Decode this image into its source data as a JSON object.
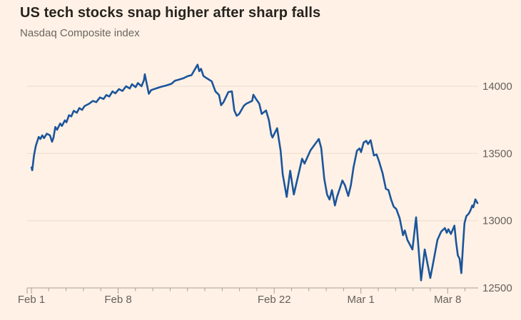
{
  "header": {
    "title": "US tech stocks snap higher after sharp falls",
    "subtitle": "Nasdaq Composite index"
  },
  "colors": {
    "background": "#FFF1E5",
    "line": "#1B559B",
    "gridline": "#EADDCF",
    "axis": "#A9A093",
    "tick_label": "#66605B",
    "title_text": "#26231F",
    "subtitle_text": "#6B655F"
  },
  "chart_data": {
    "type": "line",
    "title": "US tech stocks snap higher after sharp falls",
    "ylabel": "Nasdaq Composite index",
    "legend_position": "none",
    "grid": "horizontal-only",
    "x_unit": "trading sessions from Feb 1 (intraday)",
    "t_max": 26,
    "ylim": [
      12500,
      14280
    ],
    "y_ticks": [
      14000,
      13500,
      13000,
      12500
    ],
    "x_tick_labels": [
      {
        "t": 0,
        "label": "Feb 1"
      },
      {
        "t": 5,
        "label": "Feb 8"
      },
      {
        "t": 14,
        "label": "Feb 22"
      },
      {
        "t": 19,
        "label": "Mar 1"
      },
      {
        "t": 24,
        "label": "Mar 8"
      }
    ],
    "series": [
      {
        "name": "Nasdaq Composite index",
        "points": [
          [
            0.01,
            13396
          ],
          [
            0.05,
            13375
          ],
          [
            0.15,
            13485
          ],
          [
            0.25,
            13555
          ],
          [
            0.42,
            13623
          ],
          [
            0.52,
            13608
          ],
          [
            0.63,
            13635
          ],
          [
            0.73,
            13614
          ],
          [
            0.89,
            13647
          ],
          [
            1.07,
            13635
          ],
          [
            1.19,
            13587
          ],
          [
            1.27,
            13617
          ],
          [
            1.38,
            13697
          ],
          [
            1.48,
            13676
          ],
          [
            1.66,
            13723
          ],
          [
            1.76,
            13705
          ],
          [
            1.93,
            13746
          ],
          [
            2.02,
            13732
          ],
          [
            2.17,
            13785
          ],
          [
            2.3,
            13776
          ],
          [
            2.44,
            13817
          ],
          [
            2.62,
            13803
          ],
          [
            2.76,
            13838
          ],
          [
            2.92,
            13824
          ],
          [
            3.06,
            13852
          ],
          [
            3.33,
            13870
          ],
          [
            3.54,
            13891
          ],
          [
            3.74,
            13882
          ],
          [
            3.95,
            13917
          ],
          [
            4.16,
            13905
          ],
          [
            4.32,
            13935
          ],
          [
            4.49,
            13923
          ],
          [
            4.68,
            13962
          ],
          [
            4.84,
            13947
          ],
          [
            5.05,
            13979
          ],
          [
            5.25,
            13965
          ],
          [
            5.46,
            14000
          ],
          [
            5.67,
            13983
          ],
          [
            5.8,
            14015
          ],
          [
            6.01,
            13993
          ],
          [
            6.14,
            14024
          ],
          [
            6.35,
            14000
          ],
          [
            6.49,
            14046
          ],
          [
            6.54,
            14089
          ],
          [
            6.77,
            13944
          ],
          [
            6.9,
            13971
          ],
          [
            7.17,
            13983
          ],
          [
            7.48,
            13996
          ],
          [
            7.75,
            14005
          ],
          [
            8.07,
            14018
          ],
          [
            8.28,
            14041
          ],
          [
            8.5,
            14049
          ],
          [
            8.75,
            14059
          ],
          [
            9.03,
            14076
          ],
          [
            9.23,
            14082
          ],
          [
            9.58,
            14160
          ],
          [
            9.68,
            14112
          ],
          [
            9.78,
            14130
          ],
          [
            9.92,
            14076
          ],
          [
            10.12,
            14059
          ],
          [
            10.4,
            14036
          ],
          [
            10.61,
            13962
          ],
          [
            10.82,
            13935
          ],
          [
            10.94,
            13859
          ],
          [
            11.08,
            13882
          ],
          [
            11.36,
            13957
          ],
          [
            11.56,
            13962
          ],
          [
            11.7,
            13820
          ],
          [
            11.84,
            13780
          ],
          [
            11.98,
            13794
          ],
          [
            12.25,
            13855
          ],
          [
            12.39,
            13870
          ],
          [
            12.73,
            13891
          ],
          [
            12.8,
            13937
          ],
          [
            12.98,
            13900
          ],
          [
            13.14,
            13870
          ],
          [
            13.28,
            13794
          ],
          [
            13.53,
            13820
          ],
          [
            13.69,
            13749
          ],
          [
            13.83,
            13640
          ],
          [
            13.9,
            13619
          ],
          [
            14.17,
            13688
          ],
          [
            14.37,
            13520
          ],
          [
            14.49,
            13346
          ],
          [
            14.72,
            13177
          ],
          [
            14.92,
            13372
          ],
          [
            15.13,
            13195
          ],
          [
            15.61,
            13461
          ],
          [
            15.75,
            13425
          ],
          [
            16.09,
            13523
          ],
          [
            16.3,
            13560
          ],
          [
            16.57,
            13608
          ],
          [
            16.71,
            13540
          ],
          [
            16.89,
            13310
          ],
          [
            17.05,
            13195
          ],
          [
            17.19,
            13158
          ],
          [
            17.33,
            13228
          ],
          [
            17.5,
            13113
          ],
          [
            17.63,
            13180
          ],
          [
            17.78,
            13239
          ],
          [
            17.93,
            13299
          ],
          [
            18.08,
            13264
          ],
          [
            18.27,
            13184
          ],
          [
            18.42,
            13264
          ],
          [
            18.57,
            13396
          ],
          [
            18.77,
            13520
          ],
          [
            18.92,
            13538
          ],
          [
            19.01,
            13510
          ],
          [
            19.16,
            13582
          ],
          [
            19.31,
            13594
          ],
          [
            19.41,
            13570
          ],
          [
            19.56,
            13599
          ],
          [
            19.75,
            13485
          ],
          [
            19.9,
            13493
          ],
          [
            20.05,
            13440
          ],
          [
            20.25,
            13352
          ],
          [
            20.44,
            13237
          ],
          [
            20.59,
            13228
          ],
          [
            20.74,
            13158
          ],
          [
            20.89,
            13105
          ],
          [
            21.04,
            13087
          ],
          [
            21.24,
            13016
          ],
          [
            21.43,
            12892
          ],
          [
            21.53,
            12928
          ],
          [
            21.68,
            12857
          ],
          [
            21.97,
            12786
          ],
          [
            22.18,
            13025
          ],
          [
            22.47,
            12556
          ],
          [
            22.68,
            12786
          ],
          [
            23.0,
            12574
          ],
          [
            23.21,
            12716
          ],
          [
            23.41,
            12857
          ],
          [
            23.63,
            12919
          ],
          [
            23.84,
            12945
          ],
          [
            23.95,
            12910
          ],
          [
            24.04,
            12937
          ],
          [
            24.19,
            12901
          ],
          [
            24.39,
            12963
          ],
          [
            24.49,
            12839
          ],
          [
            24.59,
            12742
          ],
          [
            24.69,
            12716
          ],
          [
            24.79,
            12610
          ],
          [
            24.89,
            12821
          ],
          [
            24.97,
            12981
          ],
          [
            25.08,
            13034
          ],
          [
            25.21,
            13051
          ],
          [
            25.32,
            13078
          ],
          [
            25.42,
            13113
          ],
          [
            25.48,
            13100
          ],
          [
            25.6,
            13159
          ],
          [
            25.72,
            13131
          ]
        ]
      }
    ]
  }
}
